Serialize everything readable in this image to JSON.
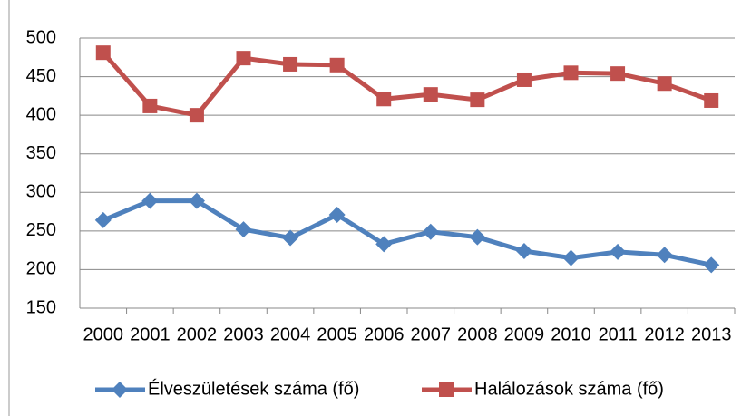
{
  "chart_data": {
    "type": "line",
    "categories": [
      "2000",
      "2001",
      "2002",
      "2003",
      "2004",
      "2005",
      "2006",
      "2007",
      "2008",
      "2009",
      "2010",
      "2011",
      "2012",
      "2013"
    ],
    "series": [
      {
        "name": "Élveszületések száma (fő)",
        "color": "#4f81bd",
        "marker": "diamond",
        "values": [
          264,
          289,
          289,
          252,
          241,
          271,
          233,
          249,
          242,
          224,
          215,
          223,
          219,
          206
        ]
      },
      {
        "name": "Halálozások száma (fő)",
        "color": "#c0504d",
        "marker": "square",
        "values": [
          481,
          412,
          400,
          474,
          466,
          465,
          421,
          427,
          420,
          446,
          455,
          454,
          441,
          419
        ]
      }
    ],
    "ylim": [
      150,
      500
    ],
    "yticks": [
      150,
      200,
      250,
      300,
      350,
      400,
      450,
      500
    ],
    "grid": true,
    "legend": "bottom"
  }
}
